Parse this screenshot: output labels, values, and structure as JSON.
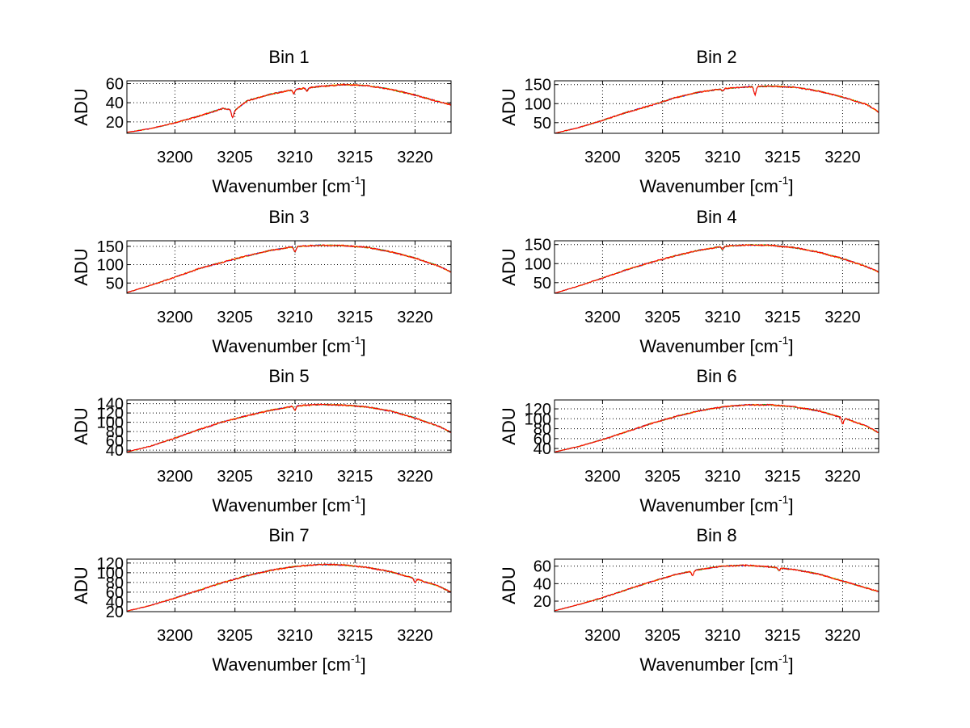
{
  "chart_data": [
    {
      "type": "line",
      "title": "Bin 1",
      "xlabel": "Wavenumber [cm",
      "xlabel_sup": "-1",
      "xlabel_close": "]",
      "ylabel": "ADU",
      "xlim": [
        3196,
        3223
      ],
      "ylim": [
        8,
        63
      ],
      "xticks": [
        3200,
        3205,
        3210,
        3215,
        3220
      ],
      "yticks": [
        20,
        40,
        60
      ],
      "grid": true,
      "peak": 3213.5,
      "width": 17.5,
      "x": [
        3196,
        3198,
        3200,
        3202,
        3204,
        3205,
        3206,
        3208,
        3210,
        3212,
        3214,
        3216,
        3218,
        3220,
        3222,
        3223
      ],
      "values": [
        9,
        13,
        19,
        26,
        34,
        32,
        42,
        49,
        54,
        57,
        59,
        58,
        54,
        48,
        41,
        38
      ],
      "dips": [
        [
          3204.8,
          -8
        ],
        [
          3209.9,
          -4
        ],
        [
          3211.0,
          -3
        ]
      ]
    },
    {
      "type": "line",
      "title": "Bin 2",
      "xlabel": "Wavenumber [cm",
      "xlabel_sup": "-1",
      "xlabel_close": "]",
      "ylabel": "ADU",
      "xlim": [
        3196,
        3223
      ],
      "ylim": [
        22,
        160
      ],
      "xticks": [
        3200,
        3205,
        3210,
        3215,
        3220
      ],
      "yticks": [
        50,
        100,
        150
      ],
      "grid": true,
      "peak": 3213.0,
      "width": 19.5,
      "x": [
        3196,
        3198,
        3200,
        3202,
        3204,
        3206,
        3208,
        3210,
        3212,
        3214,
        3216,
        3218,
        3220,
        3222,
        3223
      ],
      "values": [
        22,
        37,
        56,
        77,
        95,
        115,
        130,
        139,
        144,
        146,
        143,
        133,
        117,
        98,
        78
      ],
      "dips": [
        [
          3210.0,
          -6
        ],
        [
          3212.7,
          -22
        ]
      ]
    },
    {
      "type": "line",
      "title": "Bin 3",
      "xlabel": "Wavenumber [cm",
      "xlabel_sup": "-1",
      "xlabel_close": "]",
      "ylabel": "ADU",
      "xlim": [
        3196,
        3223
      ],
      "ylim": [
        22,
        165
      ],
      "xticks": [
        3200,
        3205,
        3210,
        3215,
        3220
      ],
      "yticks": [
        50,
        100,
        150
      ],
      "grid": true,
      "peak": 3212.5,
      "width": 20.0,
      "x": [
        3196,
        3198,
        3200,
        3202,
        3204,
        3206,
        3208,
        3210,
        3212,
        3214,
        3216,
        3218,
        3220,
        3222,
        3223
      ],
      "values": [
        24,
        44,
        66,
        89,
        107,
        124,
        139,
        149,
        153,
        152,
        147,
        135,
        118,
        96,
        80
      ],
      "dips": [
        [
          3210.0,
          -14
        ]
      ]
    },
    {
      "type": "line",
      "title": "Bin 4",
      "xlabel": "Wavenumber [cm",
      "xlabel_sup": "-1",
      "xlabel_close": "]",
      "ylabel": "ADU",
      "xlim": [
        3196,
        3223
      ],
      "ylim": [
        22,
        160
      ],
      "xticks": [
        3200,
        3205,
        3210,
        3215,
        3220
      ],
      "yticks": [
        50,
        100,
        150
      ],
      "grid": true,
      "peak": 3212.5,
      "width": 20.0,
      "x": [
        3196,
        3198,
        3200,
        3202,
        3204,
        3206,
        3208,
        3210,
        3212,
        3214,
        3216,
        3218,
        3220,
        3222,
        3223
      ],
      "values": [
        22,
        41,
        62,
        84,
        103,
        120,
        135,
        145,
        149,
        148,
        142,
        130,
        113,
        92,
        78
      ],
      "dips": [
        [
          3210.0,
          -8
        ]
      ]
    },
    {
      "type": "line",
      "title": "Bin 5",
      "xlabel": "Wavenumber [cm",
      "xlabel_sup": "-1",
      "xlabel_close": "]",
      "ylabel": "ADU",
      "xlim": [
        3196,
        3223
      ],
      "ylim": [
        35,
        148
      ],
      "xticks": [
        3200,
        3205,
        3210,
        3215,
        3220
      ],
      "yticks": [
        40,
        60,
        80,
        100,
        120,
        140
      ],
      "grid": true,
      "peak": 3212.0,
      "width": 20.5,
      "x": [
        3196,
        3198,
        3200,
        3202,
        3204,
        3206,
        3208,
        3210,
        3212,
        3214,
        3216,
        3218,
        3220,
        3222,
        3223
      ],
      "values": [
        36,
        49,
        66,
        84,
        101,
        114,
        126,
        135,
        138,
        137,
        133,
        124,
        109,
        91,
        78
      ],
      "dips": [
        [
          3210.0,
          -9
        ]
      ]
    },
    {
      "type": "line",
      "title": "Bin 6",
      "xlabel": "Wavenumber [cm",
      "xlabel_sup": "-1",
      "xlabel_close": "]",
      "ylabel": "ADU",
      "xlim": [
        3196,
        3223
      ],
      "ylim": [
        32,
        138
      ],
      "xticks": [
        3200,
        3205,
        3210,
        3215,
        3220
      ],
      "yticks": [
        40,
        60,
        80,
        100,
        120
      ],
      "grid": true,
      "peak": 3212.5,
      "width": 20.5,
      "x": [
        3196,
        3198,
        3200,
        3202,
        3204,
        3206,
        3208,
        3210,
        3212,
        3214,
        3216,
        3218,
        3220,
        3222,
        3223
      ],
      "values": [
        33,
        44,
        58,
        74,
        90,
        104,
        116,
        124,
        128,
        128,
        124,
        116,
        102,
        85,
        72
      ],
      "dips": [
        [
          3220.0,
          -12
        ]
      ]
    },
    {
      "type": "line",
      "title": "Bin 7",
      "xlabel": "Wavenumber [cm",
      "xlabel_sup": "-1",
      "xlabel_close": "]",
      "ylabel": "ADU",
      "xlim": [
        3196,
        3223
      ],
      "ylim": [
        20,
        128
      ],
      "xticks": [
        3200,
        3205,
        3210,
        3215,
        3220
      ],
      "yticks": [
        20,
        40,
        60,
        80,
        100,
        120
      ],
      "grid": true,
      "peak": 3212.0,
      "width": 20.5,
      "x": [
        3196,
        3198,
        3200,
        3202,
        3204,
        3206,
        3208,
        3210,
        3212,
        3214,
        3216,
        3218,
        3220,
        3222,
        3223
      ],
      "values": [
        21,
        33,
        48,
        64,
        80,
        94,
        105,
        113,
        117,
        116,
        111,
        102,
        88,
        72,
        60
      ],
      "dips": [
        [
          3220.0,
          -8
        ]
      ]
    },
    {
      "type": "line",
      "title": "Bin 8",
      "xlabel": "Wavenumber [cm",
      "xlabel_sup": "-1",
      "xlabel_close": "]",
      "ylabel": "ADU",
      "xlim": [
        3196,
        3223
      ],
      "ylim": [
        8,
        68
      ],
      "xticks": [
        3200,
        3205,
        3210,
        3215,
        3220
      ],
      "yticks": [
        20,
        40,
        60
      ],
      "grid": true,
      "peak": 3210.5,
      "width": 17.0,
      "x": [
        3196,
        3198,
        3200,
        3202,
        3204,
        3206,
        3208,
        3210,
        3212,
        3214,
        3216,
        3218,
        3220,
        3222,
        3223
      ],
      "values": [
        9,
        16,
        24,
        33,
        42,
        50,
        56,
        60,
        61,
        59,
        56,
        51,
        43,
        35,
        31
      ],
      "dips": [
        [
          3207.5,
          -5
        ],
        [
          3214.7,
          -3
        ]
      ]
    }
  ],
  "colors": {
    "series_red": "#ff0000",
    "series_green": "#00aa00",
    "series_blue": "#0000ff",
    "series_yellow": "#ffcc00",
    "grid": "#000000"
  }
}
